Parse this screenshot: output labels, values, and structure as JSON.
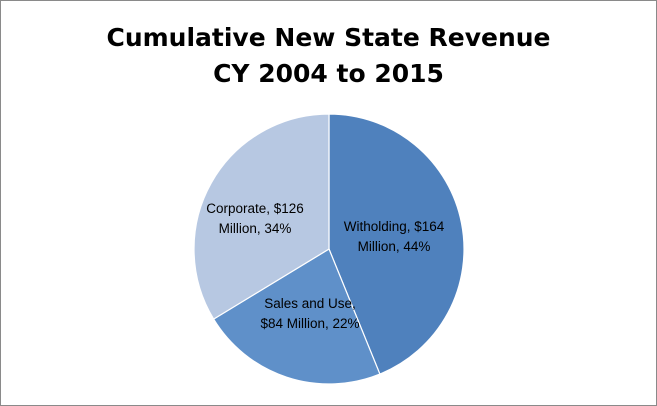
{
  "chart_data": {
    "type": "pie",
    "title": [
      "Cumulative New State Revenue",
      "CY 2004 to 2015"
    ],
    "slices": [
      {
        "name": "Witholding",
        "value": 164,
        "percent": 44,
        "color": "#4f81bd",
        "label_lines": [
          "Witholding, $164",
          "Million, 44%"
        ]
      },
      {
        "name": "Sales and Use",
        "value": 84,
        "percent": 22,
        "color": "#5f90c9",
        "label_lines": [
          "Sales and Use,",
          "$84 Million, 22%"
        ]
      },
      {
        "name": "Corporate",
        "value": 126,
        "percent": 34,
        "color": "#b7c8e2",
        "label_lines": [
          "Corporate, $126",
          "Million, 34%"
        ]
      }
    ],
    "start_angle_deg": 0,
    "direction": "clockwise"
  }
}
